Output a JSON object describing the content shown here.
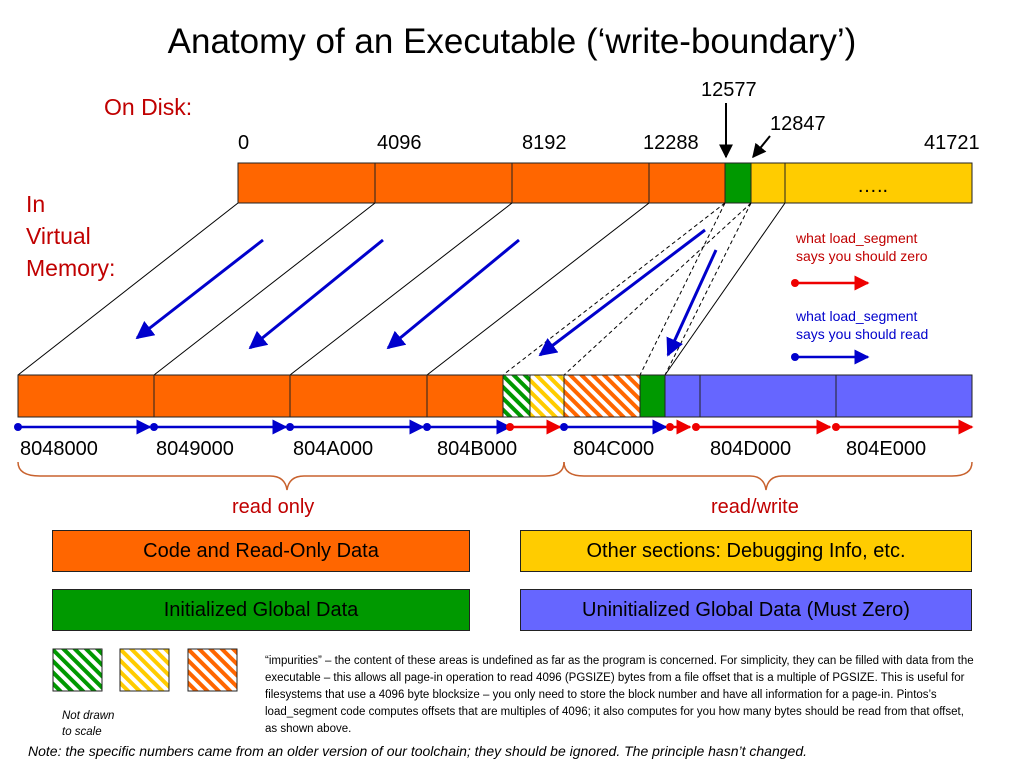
{
  "title": "Anatomy of an Executable (‘write-boundary’)",
  "on_disk_label": "On Disk:",
  "vm_label": "In\nVirtual\nMemory:",
  "disk": {
    "offsets": [
      "0",
      "4096",
      "8192",
      "12288",
      "41721"
    ],
    "marker_12577": "12577",
    "marker_12847": "12847",
    "ellipsis": "….."
  },
  "memory": {
    "addresses": [
      "8048000",
      "8049000",
      "804A000",
      "804B000",
      "804C000",
      "804D000",
      "804E000"
    ]
  },
  "regions": {
    "read_only": "read only",
    "read_write": "read/write"
  },
  "arrow_legend": {
    "zero_text": "what load_segment\nsays you should zero",
    "read_text": "what load_segment\nsays you should read"
  },
  "legend": {
    "code": "Code and Read-Only Data",
    "other": "Other sections: Debugging Info, etc.",
    "init": "Initialized Global Data",
    "uninit": "Uninitialized Global Data (Must Zero)"
  },
  "colors": {
    "orange": "#ff6600",
    "green": "#009900",
    "yellow": "#ffcc00",
    "blue": "#6666ff",
    "read_arrow": "#0000cc",
    "zero_arrow": "#ee0000"
  },
  "impurities_text": "“impurities” – the content of these areas is undefined as far as the program is concerned. For simplicity, they can be filled with data from the executable – this allows all page-in operation to read 4096 (PGSIZE) bytes from a file offset that is a multiple of PGSIZE. This is useful for filesystems that use a 4096 byte blocksize – you only need to store the block number and have all information for a page-in. Pintos’s load_segment code computes offsets that are multiples of 4096; it also computes for you how many bytes should be read from that offset, as shown above.",
  "not_drawn": "Not drawn\nto scale",
  "note": "Note: the specific numbers came from an older version of our toolchain; they should be ignored. The principle hasn’t changed."
}
